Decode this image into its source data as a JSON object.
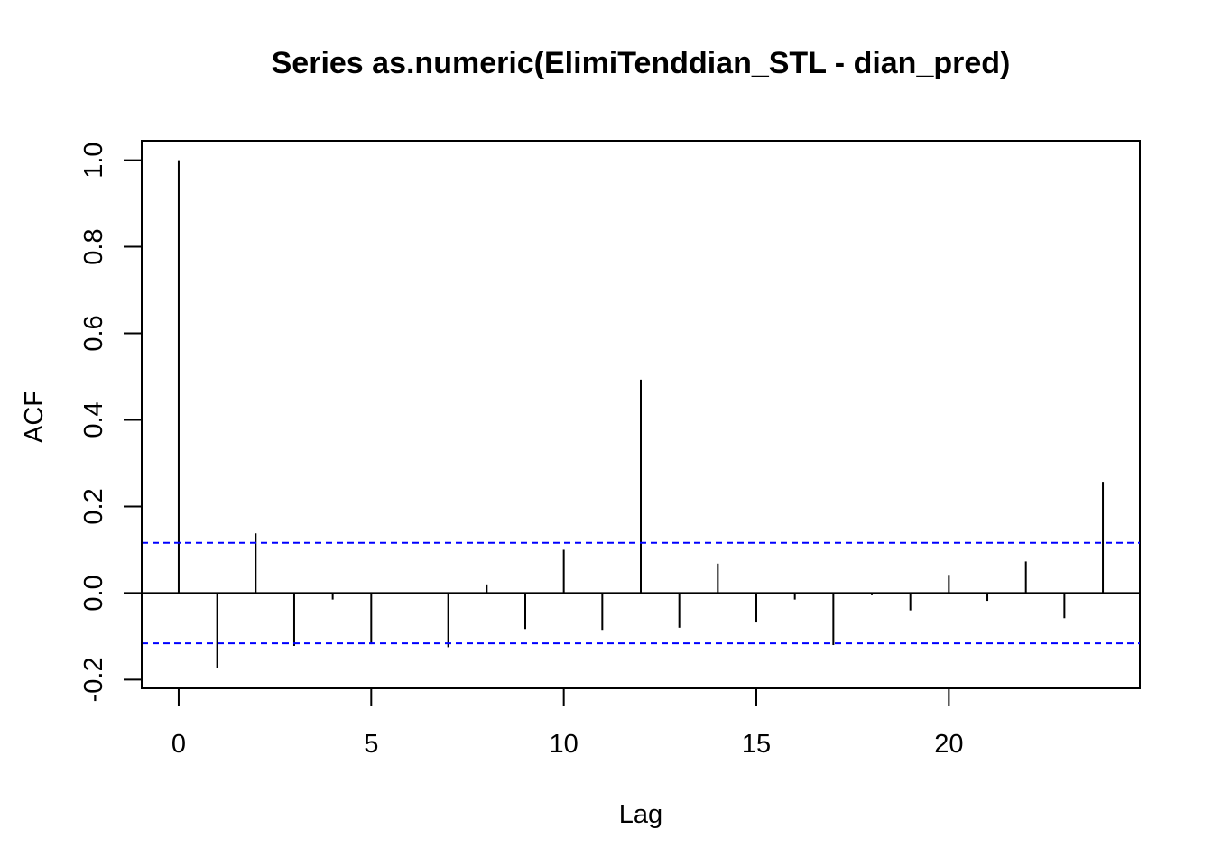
{
  "chart_data": {
    "type": "bar",
    "title": "Series  as.numeric(ElimiTenddian_STL - dian_pred)",
    "xlabel": "Lag",
    "ylabel": "ACF",
    "lags": [
      0,
      1,
      2,
      3,
      4,
      5,
      6,
      7,
      8,
      9,
      10,
      11,
      12,
      13,
      14,
      15,
      16,
      17,
      18,
      19,
      20,
      21,
      22,
      23,
      24
    ],
    "acf": [
      1.0,
      -0.172,
      0.138,
      -0.122,
      -0.015,
      -0.118,
      0.0,
      -0.125,
      0.02,
      -0.083,
      0.1,
      -0.085,
      0.493,
      -0.08,
      0.068,
      -0.068,
      -0.015,
      -0.12,
      -0.005,
      -0.04,
      0.042,
      -0.018,
      0.073,
      -0.058,
      0.257
    ],
    "conf_limit": 0.116,
    "conf_color": "#0000ff",
    "bar_color": "#000000",
    "xlim": [
      -0.96,
      24.96
    ],
    "ylim": [
      -0.22,
      1.045
    ],
    "x_ticks": [
      0,
      5,
      10,
      15,
      20
    ],
    "x_tick_labels": [
      "0",
      "5",
      "10",
      "15",
      "20"
    ],
    "y_ticks": [
      -0.2,
      0.0,
      0.2,
      0.4,
      0.6,
      0.8,
      1.0
    ],
    "y_tick_labels": [
      "-0.2",
      "0.0",
      "0.2",
      "0.4",
      "0.6",
      "0.8",
      "1.0"
    ],
    "grid": false,
    "legend": "none"
  }
}
